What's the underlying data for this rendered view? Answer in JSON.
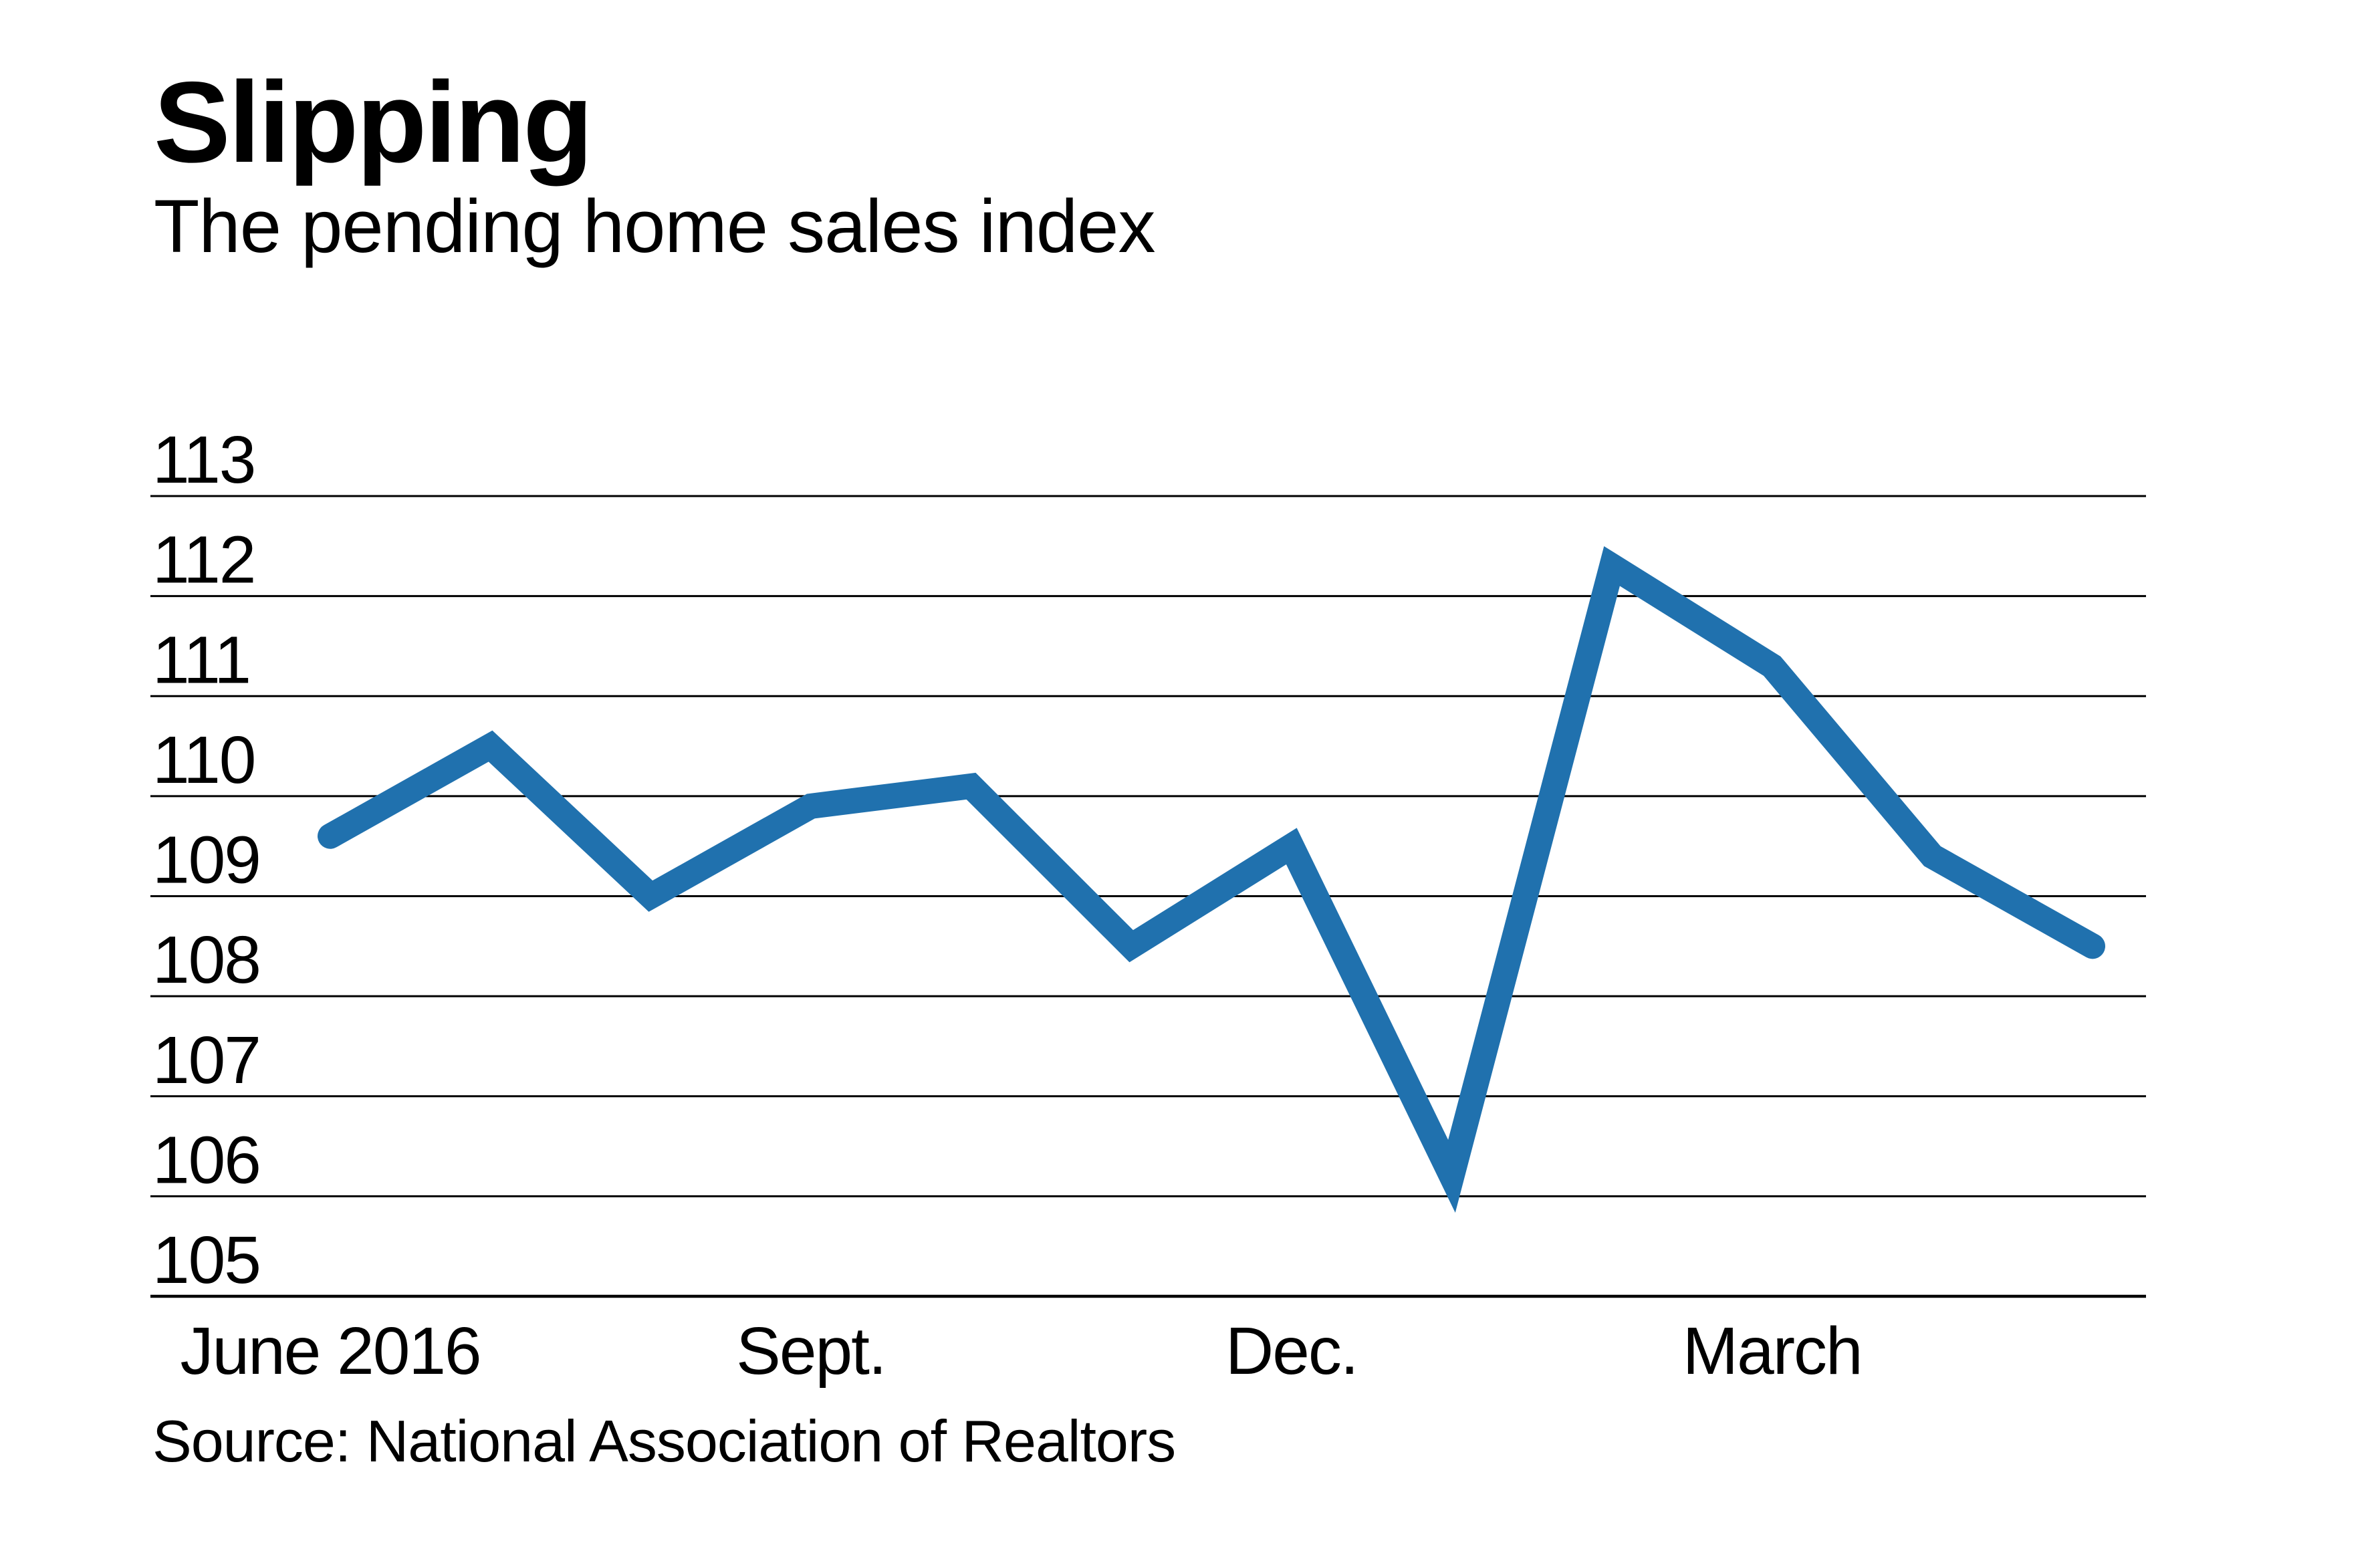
{
  "header": {
    "title": "Slipping",
    "subtitle": "The pending home sales index"
  },
  "footer": {
    "source": "Source: National Association of Realtors"
  },
  "chart_data": {
    "type": "line",
    "title": "Slipping",
    "subtitle": "The pending home sales index",
    "x": [
      "June 2016",
      "July 2016",
      "Aug. 2016",
      "Sept. 2016",
      "Oct. 2016",
      "Nov. 2016",
      "Dec. 2016",
      "Jan. 2017",
      "Feb. 2017",
      "March 2017",
      "April 2017",
      "May 2017"
    ],
    "values": [
      109.6,
      110.5,
      109.0,
      109.9,
      110.1,
      108.5,
      109.5,
      106.2,
      112.3,
      111.3,
      109.4,
      108.5
    ],
    "x_tick_labels": [
      "June 2016",
      "Sept.",
      "Dec.",
      "March"
    ],
    "x_tick_indices": [
      0,
      3,
      6,
      9
    ],
    "y_ticks": [
      113,
      112,
      111,
      110,
      109,
      108,
      107,
      106,
      105
    ],
    "ylim": [
      105,
      113
    ],
    "xlabel": "",
    "ylabel": "",
    "grid": true,
    "legend": "none",
    "y_tick_label_position": "above-left-of-gridline",
    "line_color": "#2071ae",
    "gridline_color": "#000000",
    "text_color": "#000000",
    "background_color": "#ffffff",
    "source": "Source: National Association of Realtors"
  }
}
